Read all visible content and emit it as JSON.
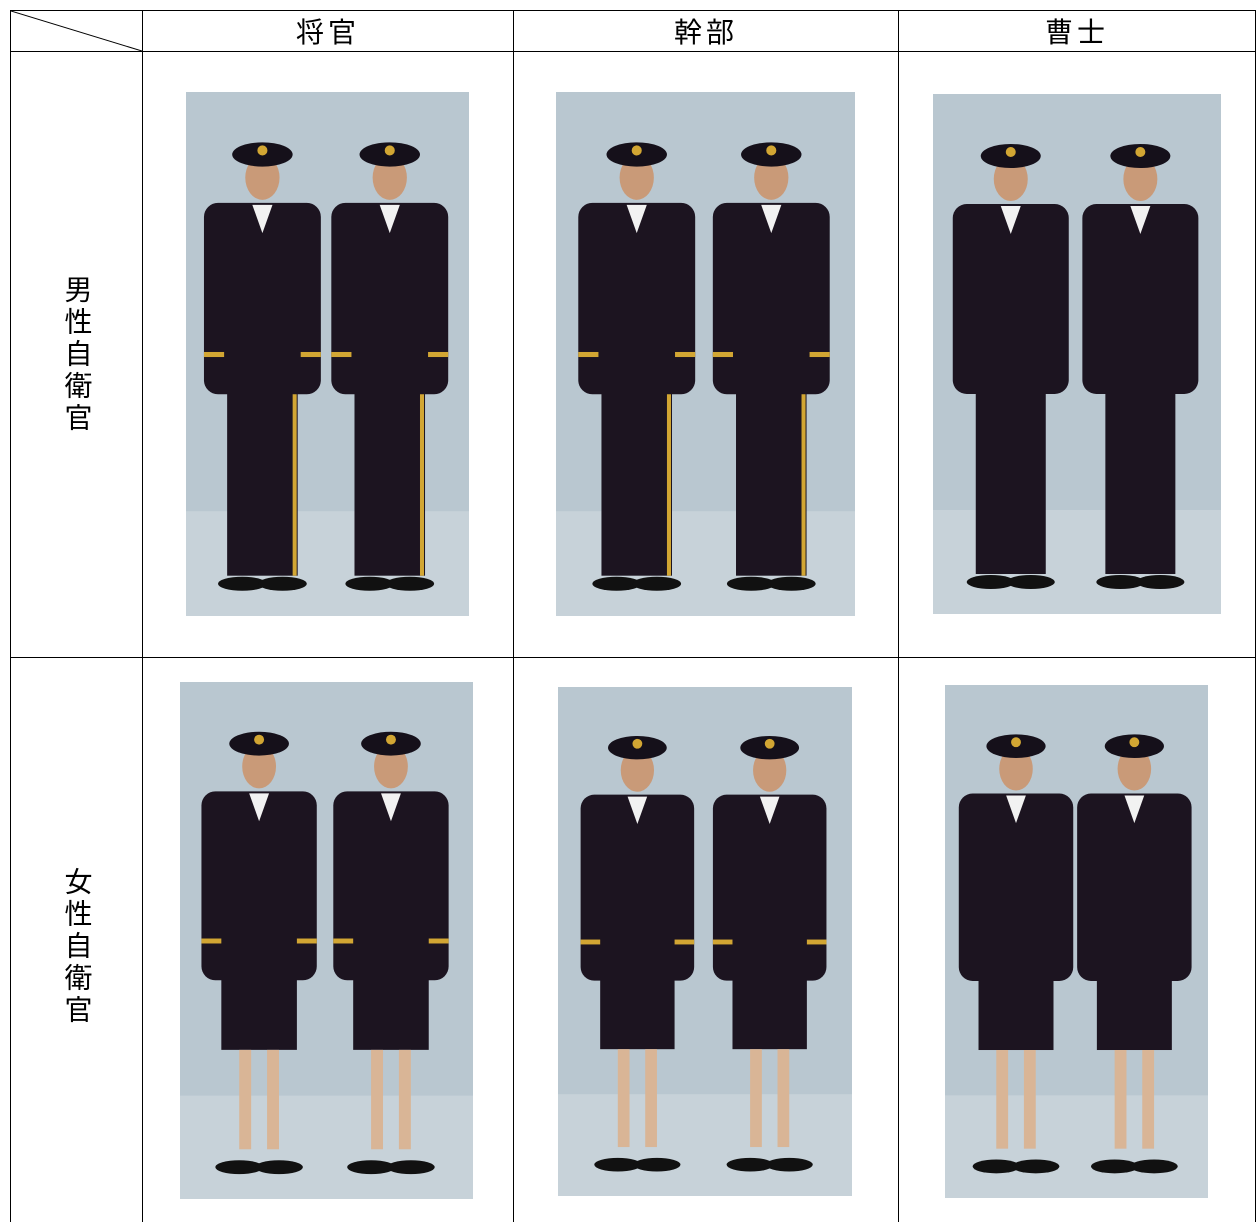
{
  "table": {
    "header": [
      "将官",
      "幹部",
      "曹士"
    ],
    "rows": [
      {
        "label": "男性自衛官"
      },
      {
        "label": "女性自衛官"
      }
    ]
  }
}
